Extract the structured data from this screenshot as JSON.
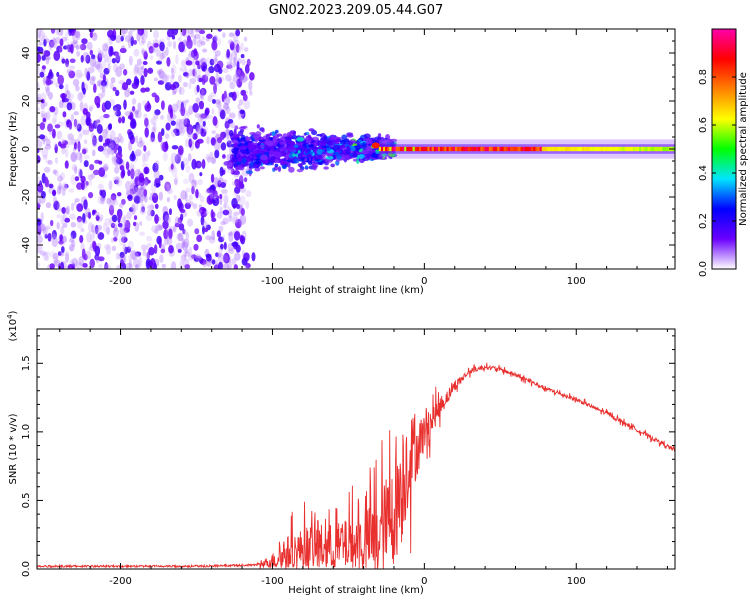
{
  "title": "GN02.2023.209.05.44.G07",
  "chart_data": [
    {
      "type": "heatmap",
      "title": "GN02.2023.209.05.44.G07",
      "xlabel": "Height of straight line (km)",
      "ylabel": "Frequency (Hz)",
      "xlim": [
        -255,
        165
      ],
      "ylim": [
        -50,
        50
      ],
      "xticks": [
        -200,
        -100,
        0,
        100
      ],
      "yticks": [
        -40,
        -20,
        0,
        20,
        40
      ],
      "xtick_labels": [
        "-200",
        "-100",
        "0",
        "100"
      ],
      "ytick_labels": [
        "-40",
        "-20",
        "0",
        "20",
        "40"
      ],
      "regions": [
        {
          "name": "broadband noise",
          "x_range": [
            -255,
            -120
          ],
          "y_range": [
            -50,
            50
          ],
          "amplitude": [
            0.05,
            0.2
          ]
        },
        {
          "name": "turbulent scintillation",
          "x_range": [
            -125,
            -20
          ],
          "y_range": [
            -12,
            12
          ],
          "amplitude": [
            0.1,
            0.45
          ]
        },
        {
          "name": "coherent carrier line",
          "x_range": [
            -30,
            165
          ],
          "y_range": [
            -1,
            1
          ],
          "amplitude": [
            0.55,
            1.0
          ]
        }
      ],
      "colorbar": {
        "label": "Normalized spectral amplitude",
        "range": [
          0.0,
          1.0
        ],
        "ticks": [
          0.0,
          0.2,
          0.4,
          0.6,
          0.8
        ],
        "tick_labels": [
          "0.0",
          "0.2",
          "0.4",
          "0.6",
          "0.8"
        ],
        "colormap": [
          "#ffffff",
          "#6a00ff",
          "#0000ff",
          "#00e5ff",
          "#00ff00",
          "#ffff00",
          "#ff8000",
          "#ff0000",
          "#ff00aa"
        ]
      }
    },
    {
      "type": "line",
      "xlabel": "Height of straight line (km)",
      "ylabel": "SNR (10 * v/v)",
      "scale_label": "(x10",
      "scale_exponent": "4",
      "scale_close": ")",
      "xlim": [
        -255,
        165
      ],
      "ylim": [
        0,
        1.75
      ],
      "xticks": [
        -200,
        -100,
        0,
        100
      ],
      "yticks": [
        0.0,
        0.5,
        1.0,
        1.5
      ],
      "xtick_labels": [
        "-200",
        "-100",
        "0",
        "100"
      ],
      "ytick_labels": [
        "0.0",
        "0.5",
        "1.0",
        "1.5"
      ],
      "color": "#e8302f",
      "series": [
        {
          "name": "SNR",
          "x": [
            -255,
            -200,
            -150,
            -110,
            -100,
            -90,
            -80,
            -70,
            -60,
            -50,
            -40,
            -30,
            -25,
            -20,
            -15,
            -10,
            -5,
            0,
            10,
            20,
            30,
            40,
            50,
            60,
            70,
            80,
            90,
            100,
            110,
            120,
            130,
            140,
            150,
            160,
            165
          ],
          "values": [
            0.02,
            0.02,
            0.02,
            0.03,
            0.08,
            0.16,
            0.2,
            0.22,
            0.22,
            0.24,
            0.26,
            0.35,
            0.45,
            0.55,
            0.7,
            0.95,
            0.95,
            1.05,
            1.2,
            1.35,
            1.45,
            1.48,
            1.46,
            1.42,
            1.37,
            1.32,
            1.28,
            1.24,
            1.19,
            1.14,
            1.08,
            1.02,
            0.96,
            0.9,
            0.87
          ],
          "noise_amplitude": [
            0.0,
            0.0,
            0.0,
            0.01,
            0.08,
            0.18,
            0.22,
            0.25,
            0.24,
            0.28,
            0.32,
            0.45,
            0.5,
            0.55,
            0.55,
            0.5,
            0.3,
            0.2,
            0.1,
            0.05,
            0.03,
            0.02,
            0.02,
            0.02,
            0.02,
            0.02,
            0.02,
            0.02,
            0.02,
            0.02,
            0.02,
            0.02,
            0.02,
            0.02,
            0.02
          ]
        }
      ]
    }
  ]
}
